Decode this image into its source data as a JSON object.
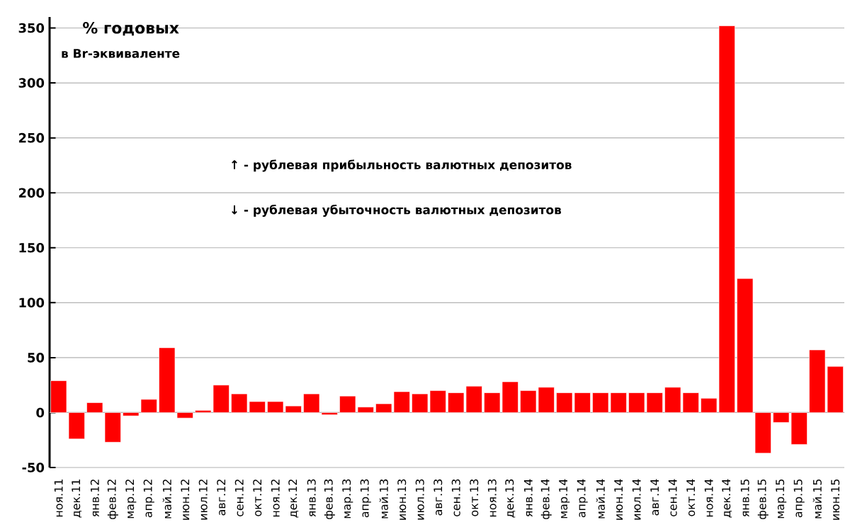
{
  "chart_data": {
    "type": "bar",
    "title": "% годовых",
    "subtitle": "в Br-эквиваленте",
    "categories": [
      "ноя.11",
      "дек.11",
      "янв.12",
      "фев.12",
      "мар.12",
      "апр.12",
      "май.12",
      "июн.12",
      "июл.12",
      "авг.12",
      "сен.12",
      "окт.12",
      "ноя.12",
      "дек.12",
      "янв.13",
      "фев.13",
      "мар.13",
      "апр.13",
      "май.13",
      "июн.13",
      "июл.13",
      "авг.13",
      "сен.13",
      "окт.13",
      "ноя.13",
      "дек.13",
      "янв.14",
      "фев.14",
      "мар.14",
      "апр.14",
      "май.14",
      "июн.14",
      "июл.14",
      "авг.14",
      "сен.14",
      "окт.14",
      "ноя.14",
      "дек.14",
      "янв.15",
      "фев.15",
      "мар.15",
      "апр.15",
      "май.15",
      "июн.15"
    ],
    "values": [
      29,
      -24,
      9,
      -27,
      -3,
      12,
      59,
      -5,
      2,
      25,
      17,
      10,
      10,
      6,
      17,
      -2,
      15,
      5,
      8,
      19,
      17,
      20,
      18,
      24,
      18,
      28,
      20,
      23,
      18,
      18,
      18,
      18,
      18,
      18,
      23,
      18,
      13,
      352,
      122,
      -37,
      -9,
      -29,
      57,
      42
    ],
    "color": "#ff0000",
    "ylim": [
      -50,
      360
    ],
    "yticks": [
      -50,
      0,
      50,
      100,
      150,
      200,
      250,
      300,
      350
    ],
    "grid": "y",
    "annotations": [
      "↑ - рублевая прибыльность  валютных депозитов",
      "↓ - рублевая убыточность  валютных депозитов"
    ]
  }
}
